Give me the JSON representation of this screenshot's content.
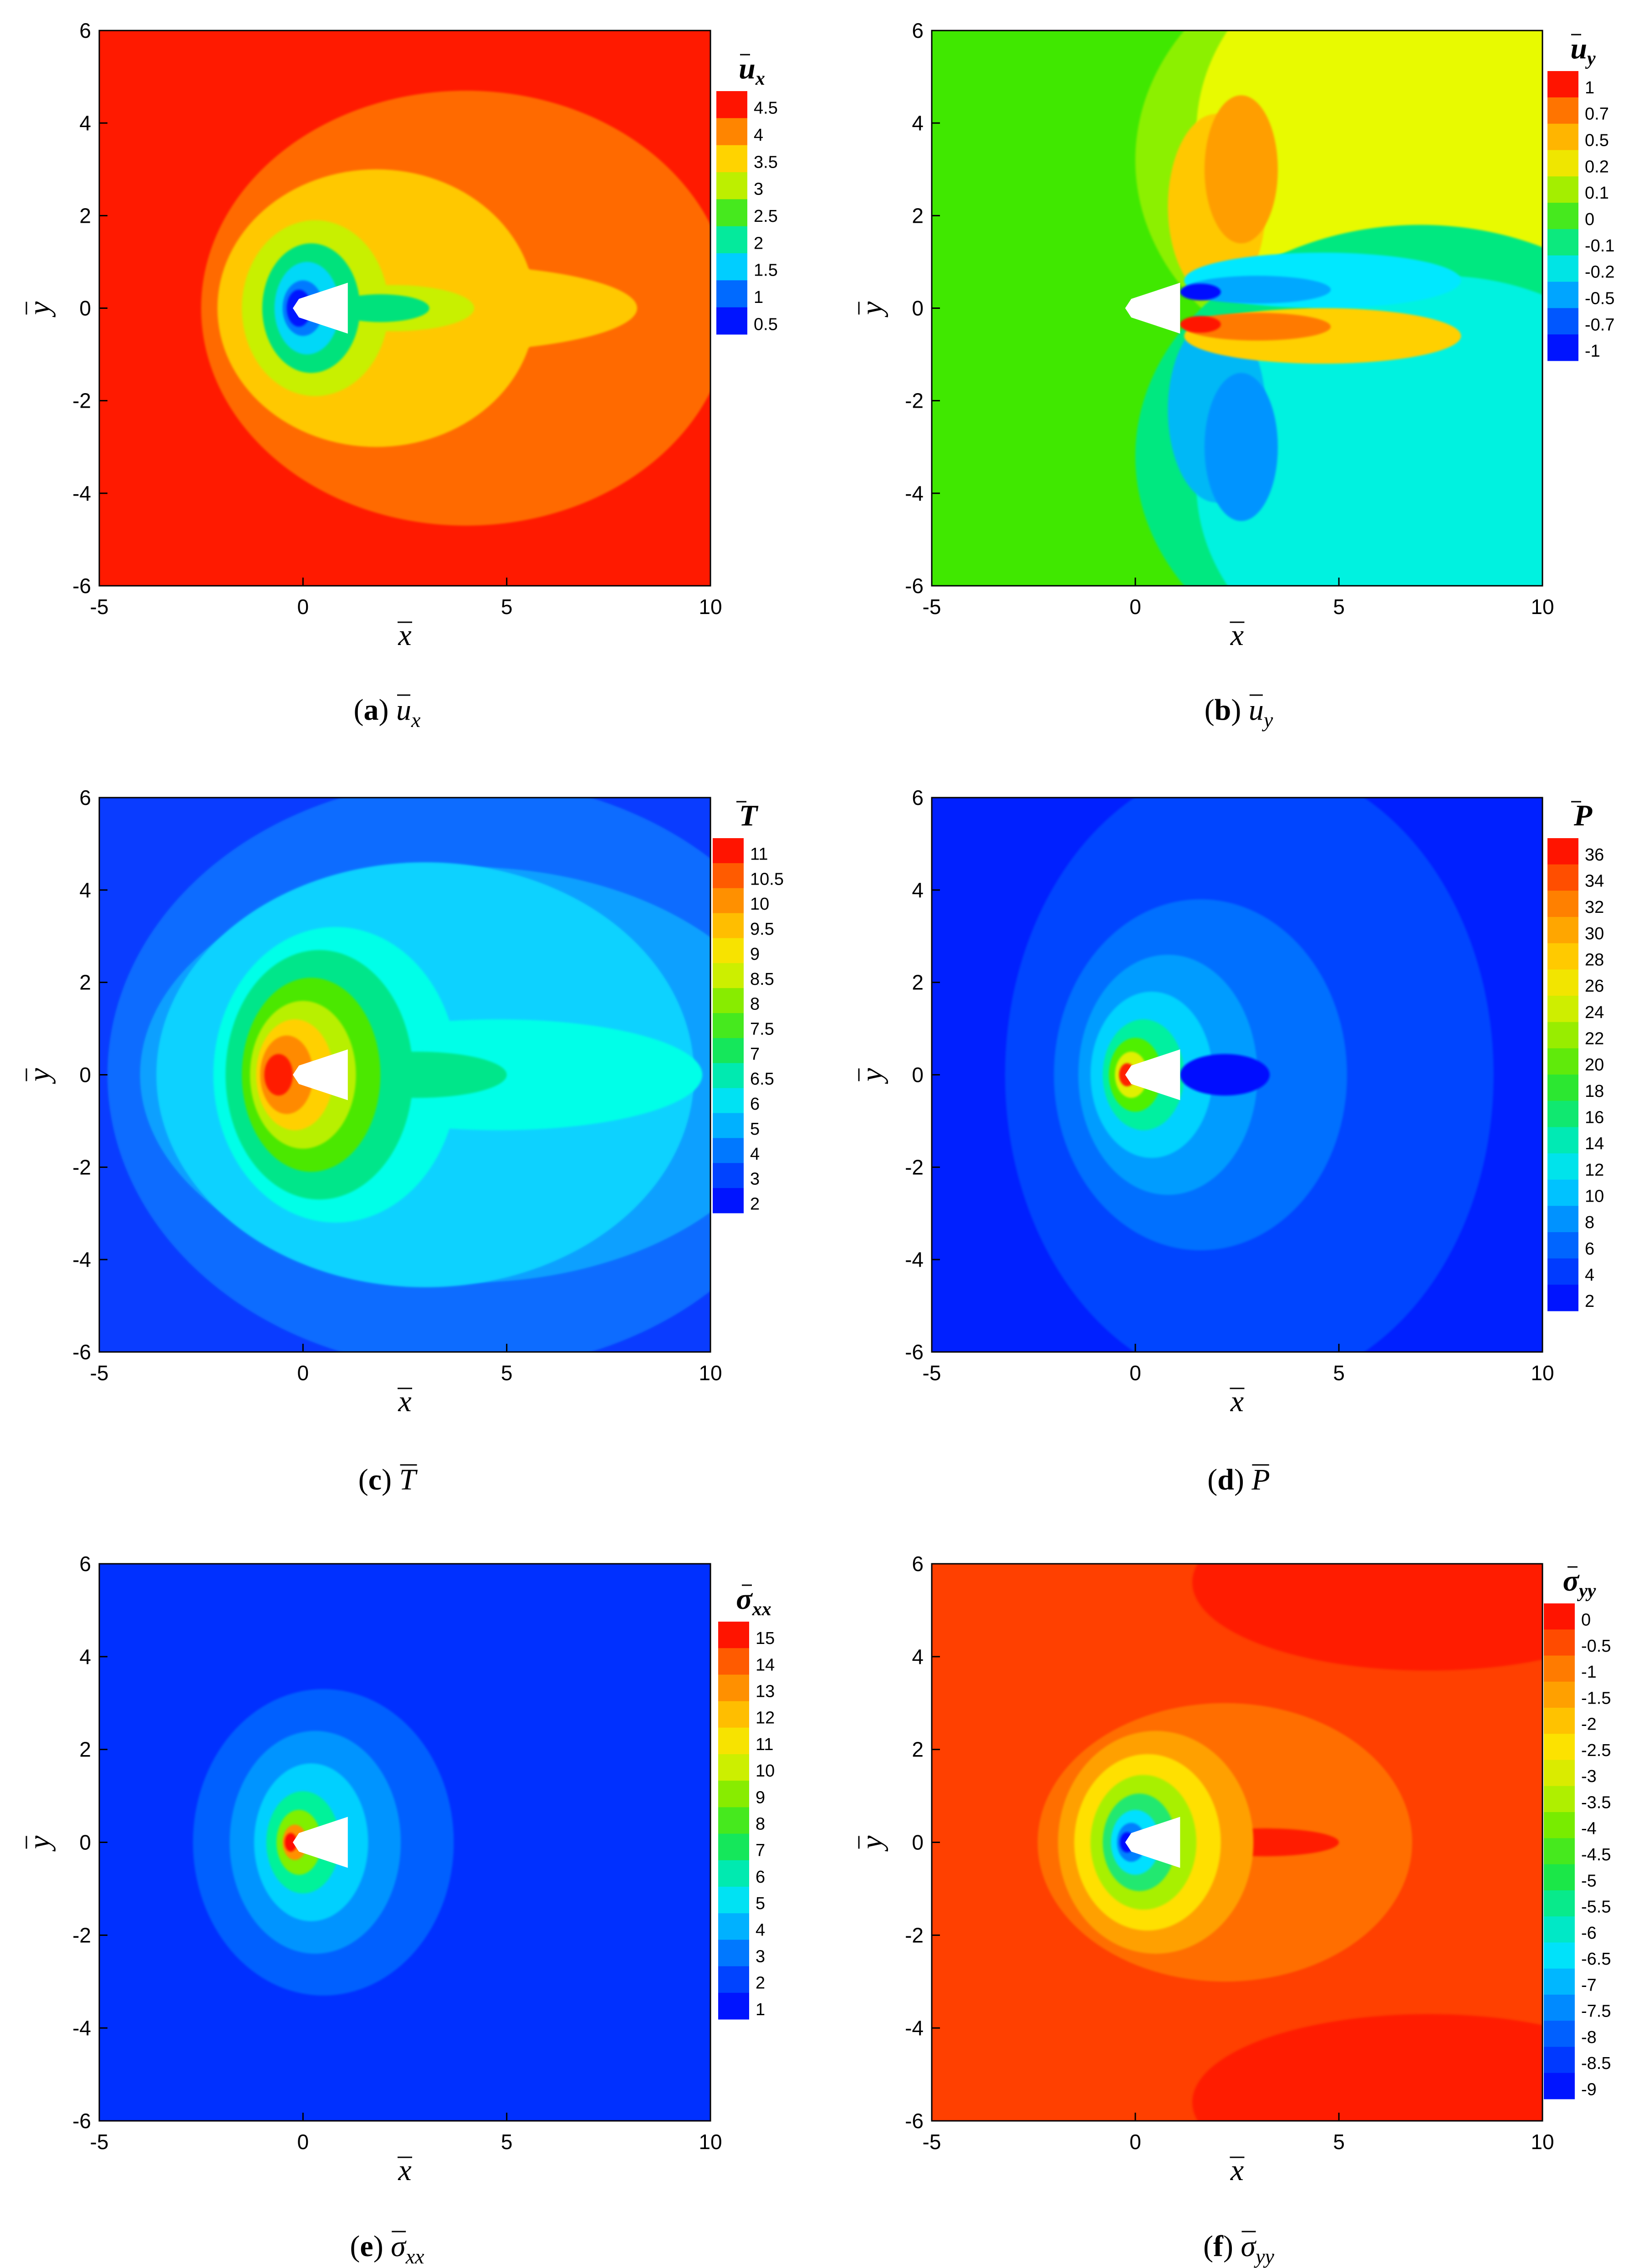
{
  "chart_data": [
    {
      "type": "heatmap",
      "panel": "a",
      "caption": {
        "label": "a",
        "symbol": "u",
        "sub": "x"
      },
      "legend": {
        "symbol": "u",
        "sub": "x",
        "ticks": [
          "4.5",
          "4",
          "3.5",
          "3",
          "2.5",
          "2",
          "1.5",
          "1",
          "0.5"
        ]
      },
      "xlabel": "x",
      "ylabel": "y",
      "xlim": [
        -5,
        10
      ],
      "ylim": [
        -6,
        6
      ],
      "xticks": [
        "-5",
        "0",
        "5",
        "10"
      ],
      "yticks": [
        "6",
        "4",
        "2",
        "0",
        "-2",
        "-4",
        "-6"
      ],
      "background": "#ff1a00",
      "regions": [
        {
          "kind": "blob",
          "cx": 4.0,
          "cy": 0,
          "rx": 6.5,
          "ry": 4.7,
          "color": "#ff6a00"
        },
        {
          "kind": "blob",
          "cx": 1.8,
          "cy": 0,
          "rx": 3.9,
          "ry": 3.0,
          "color": "#ffc800"
        },
        {
          "kind": "blob",
          "cx": 3.2,
          "cy": 0,
          "rx": 5.0,
          "ry": 0.95,
          "color": "#ffc800"
        },
        {
          "kind": "blob",
          "cx": 0.3,
          "cy": 0,
          "rx": 1.8,
          "ry": 1.9,
          "color": "#c8f000"
        },
        {
          "kind": "blob",
          "cx": 2.2,
          "cy": 0,
          "rx": 2.0,
          "ry": 0.5,
          "color": "#c8f000"
        },
        {
          "kind": "blob",
          "cx": 0.2,
          "cy": 0,
          "rx": 1.2,
          "ry": 1.4,
          "color": "#00e27c"
        },
        {
          "kind": "blob",
          "cx": 1.9,
          "cy": 0,
          "rx": 1.2,
          "ry": 0.3,
          "color": "#00e27c"
        },
        {
          "kind": "blob",
          "cx": 0.1,
          "cy": 0,
          "rx": 0.8,
          "ry": 1.0,
          "color": "#00d8f8"
        },
        {
          "kind": "blob",
          "cx": 0.0,
          "cy": 0,
          "rx": 0.5,
          "ry": 0.6,
          "color": "#007aff"
        },
        {
          "kind": "blob",
          "cx": -0.1,
          "cy": 0,
          "rx": 0.3,
          "ry": 0.4,
          "color": "#0016ff"
        }
      ]
    },
    {
      "type": "heatmap",
      "panel": "b",
      "caption": {
        "label": "b",
        "symbol": "u",
        "sub": "y"
      },
      "legend": {
        "symbol": "u",
        "sub": "y",
        "ticks": [
          "1",
          "0.7",
          "0.5",
          "0.2",
          "0.1",
          "0",
          "-0.1",
          "-0.2",
          "-0.5",
          "-0.7",
          "-1"
        ]
      },
      "xlabel": "x",
      "ylabel": "y",
      "xlim": [
        -5,
        10
      ],
      "ylim": [
        -6,
        6
      ],
      "xticks": [
        "-5",
        "0",
        "5",
        "10"
      ],
      "yticks": [
        "6",
        "4",
        "2",
        "0",
        "-2",
        "-4",
        "-6"
      ],
      "background": "#40e800",
      "regions": [
        {
          "kind": "rect",
          "x0": -5,
          "x1": 10,
          "y0": 0,
          "y1": 6,
          "color": "#40e800"
        },
        {
          "kind": "rect",
          "x0": -5,
          "x1": 10,
          "y0": -6,
          "y1": 0,
          "color": "#40e800"
        },
        {
          "kind": "blob",
          "cx": 7.0,
          "cy": 3.2,
          "rx": 7.0,
          "ry": 5.0,
          "color": "#8cf000"
        },
        {
          "kind": "blob",
          "cx": 7.5,
          "cy": 3.8,
          "rx": 6.0,
          "ry": 4.5,
          "color": "#e8fa00"
        },
        {
          "kind": "blob",
          "cx": 2.0,
          "cy": 2.2,
          "rx": 1.2,
          "ry": 2.0,
          "color": "#ffc800"
        },
        {
          "kind": "blob",
          "cx": 2.6,
          "cy": 3.0,
          "rx": 0.9,
          "ry": 1.6,
          "color": "#ff9e00"
        },
        {
          "kind": "blob",
          "cx": 7.0,
          "cy": -3.2,
          "rx": 7.0,
          "ry": 5.0,
          "color": "#00e880"
        },
        {
          "kind": "blob",
          "cx": 7.5,
          "cy": -3.8,
          "rx": 6.0,
          "ry": 4.5,
          "color": "#00f2e0"
        },
        {
          "kind": "blob",
          "cx": 2.0,
          "cy": -2.2,
          "rx": 1.2,
          "ry": 2.0,
          "color": "#00b8f6"
        },
        {
          "kind": "blob",
          "cx": 2.6,
          "cy": -3.0,
          "rx": 0.9,
          "ry": 1.6,
          "color": "#0094ff"
        },
        {
          "kind": "blob",
          "cx": 4.6,
          "cy": 0.6,
          "rx": 3.4,
          "ry": 0.6,
          "color": "#00e8ff"
        },
        {
          "kind": "blob",
          "cx": 3.0,
          "cy": 0.4,
          "rx": 1.8,
          "ry": 0.3,
          "color": "#00a8ff"
        },
        {
          "kind": "blob",
          "cx": 1.6,
          "cy": 0.35,
          "rx": 0.5,
          "ry": 0.18,
          "color": "#0010ff"
        },
        {
          "kind": "blob",
          "cx": 4.6,
          "cy": -0.6,
          "rx": 3.4,
          "ry": 0.6,
          "color": "#ffd000"
        },
        {
          "kind": "blob",
          "cx": 3.0,
          "cy": -0.4,
          "rx": 1.8,
          "ry": 0.3,
          "color": "#ff7a00"
        },
        {
          "kind": "blob",
          "cx": 1.6,
          "cy": -0.35,
          "rx": 0.5,
          "ry": 0.18,
          "color": "#ff1400"
        }
      ]
    },
    {
      "type": "heatmap",
      "panel": "c",
      "caption": {
        "label": "c",
        "symbol": "T",
        "sub": ""
      },
      "legend": {
        "symbol": "T",
        "sub": "",
        "ticks": [
          "11",
          "10.5",
          "10",
          "9.5",
          "9",
          "8.5",
          "8",
          "7.5",
          "7",
          "6.5",
          "6",
          "5",
          "4",
          "3",
          "2"
        ]
      },
      "xlabel": "x",
      "ylabel": "y",
      "xlim": [
        -5,
        10
      ],
      "ylim": [
        -6,
        6
      ],
      "xticks": [
        "-5",
        "0",
        "5",
        "10"
      ],
      "yticks": [
        "6",
        "4",
        "2",
        "0",
        "-2",
        "-4",
        "-6"
      ],
      "background": "#0a3cff",
      "regions": [
        {
          "kind": "blob",
          "cx": 4.0,
          "cy": 0,
          "rx": 8.8,
          "ry": 6.4,
          "color": "#0a6cff"
        },
        {
          "kind": "blob",
          "cx": 4.0,
          "cy": 0,
          "rx": 8.0,
          "ry": 4.5,
          "color": "#0aa0ff"
        },
        {
          "kind": "blob",
          "cx": 3.0,
          "cy": 0,
          "rx": 6.6,
          "ry": 4.6,
          "color": "#0ad2ff"
        },
        {
          "kind": "blob",
          "cx": 4.8,
          "cy": 0,
          "rx": 5.0,
          "ry": 1.2,
          "color": "#00ffe8"
        },
        {
          "kind": "blob",
          "cx": 0.8,
          "cy": 0,
          "rx": 3.0,
          "ry": 3.2,
          "color": "#00ffe8"
        },
        {
          "kind": "blob",
          "cx": 0.4,
          "cy": 0,
          "rx": 2.3,
          "ry": 2.7,
          "color": "#00e68a"
        },
        {
          "kind": "blob",
          "cx": 2.8,
          "cy": 0,
          "rx": 2.2,
          "ry": 0.5,
          "color": "#00e68a"
        },
        {
          "kind": "blob",
          "cx": 0.2,
          "cy": 0,
          "rx": 1.7,
          "ry": 2.1,
          "color": "#4ce800"
        },
        {
          "kind": "blob",
          "cx": 0.0,
          "cy": 0,
          "rx": 1.3,
          "ry": 1.6,
          "color": "#b8f000"
        },
        {
          "kind": "blob",
          "cx": -0.2,
          "cy": 0,
          "rx": 0.95,
          "ry": 1.2,
          "color": "#ffd000"
        },
        {
          "kind": "blob",
          "cx": -0.4,
          "cy": 0,
          "rx": 0.65,
          "ry": 0.85,
          "color": "#ff8a00"
        },
        {
          "kind": "blob",
          "cx": -0.6,
          "cy": 0,
          "rx": 0.35,
          "ry": 0.45,
          "color": "#ff1a00"
        }
      ]
    },
    {
      "type": "heatmap",
      "panel": "d",
      "caption": {
        "label": "d",
        "symbol": "P",
        "sub": ""
      },
      "legend": {
        "symbol": "P",
        "sub": "",
        "ticks": [
          "36",
          "34",
          "32",
          "30",
          "28",
          "26",
          "24",
          "22",
          "20",
          "18",
          "16",
          "14",
          "12",
          "10",
          "8",
          "6",
          "4",
          "2"
        ]
      },
      "xlabel": "x",
      "ylabel": "y",
      "xlim": [
        -5,
        10
      ],
      "ylim": [
        -6,
        6
      ],
      "xticks": [
        "-5",
        "0",
        "5",
        "10"
      ],
      "yticks": [
        "6",
        "4",
        "2",
        "0",
        "-2",
        "-4",
        "-6"
      ],
      "background": "#0020ff",
      "regions": [
        {
          "kind": "blob",
          "cx": 2.8,
          "cy": 0,
          "rx": 6.0,
          "ry": 6.8,
          "color": "#0044ff"
        },
        {
          "kind": "blob",
          "cx": 1.6,
          "cy": 0,
          "rx": 3.6,
          "ry": 3.8,
          "color": "#0070ff"
        },
        {
          "kind": "blob",
          "cx": 0.8,
          "cy": 0,
          "rx": 2.2,
          "ry": 2.6,
          "color": "#009cff"
        },
        {
          "kind": "blob",
          "cx": 0.4,
          "cy": 0,
          "rx": 1.5,
          "ry": 1.8,
          "color": "#00d2ff"
        },
        {
          "kind": "blob",
          "cx": 0.2,
          "cy": 0,
          "rx": 1.0,
          "ry": 1.2,
          "color": "#00f0a0"
        },
        {
          "kind": "blob",
          "cx": 0.0,
          "cy": 0,
          "rx": 0.65,
          "ry": 0.8,
          "color": "#50f000"
        },
        {
          "kind": "blob",
          "cx": -0.1,
          "cy": 0,
          "rx": 0.4,
          "ry": 0.5,
          "color": "#e0f000"
        },
        {
          "kind": "blob",
          "cx": -0.2,
          "cy": 0,
          "rx": 0.2,
          "ry": 0.25,
          "color": "#ff2000"
        },
        {
          "kind": "blob",
          "cx": 2.2,
          "cy": 0,
          "rx": 1.1,
          "ry": 0.45,
          "color": "#0010ff"
        }
      ]
    },
    {
      "type": "heatmap",
      "panel": "e",
      "caption": {
        "label": "e",
        "symbol": "σ",
        "sub": "xx"
      },
      "legend": {
        "symbol": "σ",
        "sub": "xx",
        "ticks": [
          "15",
          "14",
          "13",
          "12",
          "11",
          "10",
          "9",
          "8",
          "7",
          "6",
          "5",
          "4",
          "3",
          "2",
          "1"
        ]
      },
      "xlabel": "x",
      "ylabel": "y",
      "xlim": [
        -5,
        10
      ],
      "ylim": [
        -6,
        6
      ],
      "xticks": [
        "-5",
        "0",
        "5",
        "10"
      ],
      "yticks": [
        "6",
        "4",
        "2",
        "0",
        "-2",
        "-4",
        "-6"
      ],
      "background": "#0030ff",
      "regions": [
        {
          "kind": "blob",
          "cx": 0.5,
          "cy": 0,
          "rx": 3.2,
          "ry": 3.3,
          "color": "#0060ff"
        },
        {
          "kind": "blob",
          "cx": 0.3,
          "cy": 0,
          "rx": 2.1,
          "ry": 2.4,
          "color": "#0094ff"
        },
        {
          "kind": "blob",
          "cx": 0.2,
          "cy": 0,
          "rx": 1.4,
          "ry": 1.7,
          "color": "#00d0ff"
        },
        {
          "kind": "blob",
          "cx": 0.0,
          "cy": 0,
          "rx": 0.9,
          "ry": 1.1,
          "color": "#00f29a"
        },
        {
          "kind": "blob",
          "cx": -0.1,
          "cy": 0,
          "rx": 0.55,
          "ry": 0.7,
          "color": "#80f000"
        },
        {
          "kind": "blob",
          "cx": -0.2,
          "cy": 0,
          "rx": 0.3,
          "ry": 0.38,
          "color": "#ff9000"
        },
        {
          "kind": "blob",
          "cx": -0.3,
          "cy": 0,
          "rx": 0.15,
          "ry": 0.2,
          "color": "#ff1000"
        }
      ]
    },
    {
      "type": "heatmap",
      "panel": "f",
      "caption": {
        "label": "f",
        "symbol": "σ",
        "sub": "yy"
      },
      "legend": {
        "symbol": "σ",
        "sub": "yy",
        "ticks": [
          "0",
          "-0.5",
          "-1",
          "-1.5",
          "-2",
          "-2.5",
          "-3",
          "-3.5",
          "-4",
          "-4.5",
          "-5",
          "-5.5",
          "-6",
          "-6.5",
          "-7",
          "-7.5",
          "-8",
          "-8.5",
          "-9"
        ]
      },
      "xlabel": "x",
      "ylabel": "y",
      "xlim": [
        -5,
        10
      ],
      "ylim": [
        -6,
        6
      ],
      "xticks": [
        "-5",
        "0",
        "5",
        "10"
      ],
      "yticks": [
        "6",
        "4",
        "2",
        "0",
        "-2",
        "-4",
        "-6"
      ],
      "background": "#ff4000",
      "regions": [
        {
          "kind": "blob",
          "cx": 7.2,
          "cy": 5.6,
          "rx": 5.8,
          "ry": 1.9,
          "color": "#ff1a00"
        },
        {
          "kind": "blob",
          "cx": 7.2,
          "cy": -5.6,
          "rx": 5.8,
          "ry": 1.9,
          "color": "#ff1a00"
        },
        {
          "kind": "blob",
          "cx": 2.2,
          "cy": 0,
          "rx": 4.6,
          "ry": 3.0,
          "color": "#ff6e00"
        },
        {
          "kind": "blob",
          "cx": 3.2,
          "cy": 0,
          "rx": 1.8,
          "ry": 0.3,
          "color": "#ff1a00"
        },
        {
          "kind": "blob",
          "cx": 0.5,
          "cy": 0,
          "rx": 2.4,
          "ry": 2.4,
          "color": "#ffa000"
        },
        {
          "kind": "blob",
          "cx": 0.3,
          "cy": 0,
          "rx": 1.8,
          "ry": 1.9,
          "color": "#ffe000"
        },
        {
          "kind": "blob",
          "cx": 0.2,
          "cy": 0,
          "rx": 1.3,
          "ry": 1.45,
          "color": "#a8f000"
        },
        {
          "kind": "blob",
          "cx": 0.1,
          "cy": 0,
          "rx": 0.9,
          "ry": 1.05,
          "color": "#20e870"
        },
        {
          "kind": "blob",
          "cx": 0.0,
          "cy": 0,
          "rx": 0.6,
          "ry": 0.7,
          "color": "#00e0ff"
        },
        {
          "kind": "blob",
          "cx": -0.1,
          "cy": 0,
          "rx": 0.35,
          "ry": 0.42,
          "color": "#0080ff"
        },
        {
          "kind": "blob",
          "cx": -0.2,
          "cy": 0,
          "rx": 0.18,
          "ry": 0.22,
          "color": "#0010ff"
        }
      ]
    }
  ]
}
